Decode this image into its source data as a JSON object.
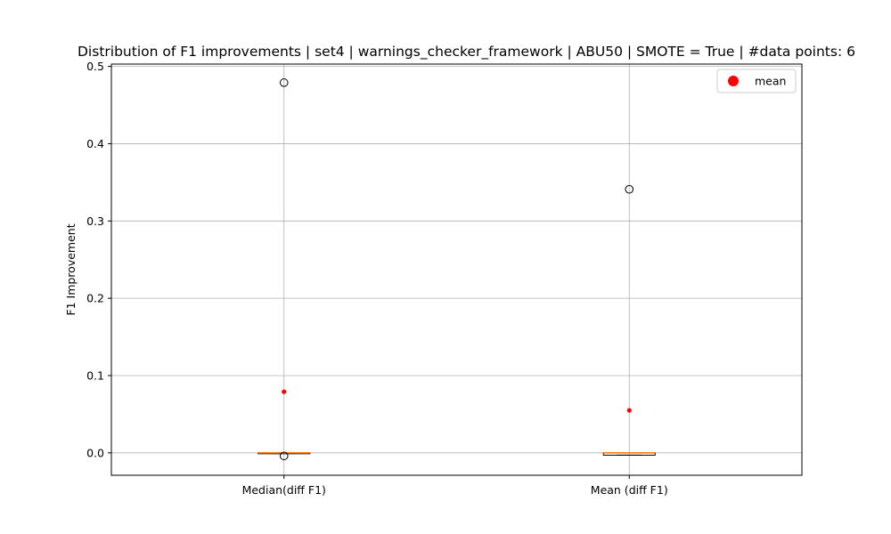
{
  "chart_data": {
    "type": "box",
    "title": "Distribution of F1 improvements | set4 | warnings_checker_framework | ABU50 | SMOTE = True | #data points: 6",
    "xlabel": "",
    "ylabel": "F1 Improvement",
    "ylim": [
      -0.029,
      0.503
    ],
    "yticks": [
      0.0,
      0.1,
      0.2,
      0.3,
      0.4,
      0.5
    ],
    "ytick_labels": [
      "0.0",
      "0.1",
      "0.2",
      "0.3",
      "0.4",
      "0.5"
    ],
    "categories": [
      "Median(diff F1)",
      "Mean (diff F1)"
    ],
    "grid": true,
    "legend": {
      "placement": "top-right",
      "entries": [
        {
          "label": "mean",
          "color": "#ff0000"
        }
      ]
    },
    "colors": {
      "median": "#ff7f0e",
      "mean": "#ff0000",
      "box": "#000000",
      "grid": "#b0b0b0"
    },
    "boxes": [
      {
        "q1": -0.001,
        "median": 0.0,
        "q3": 0.0,
        "whisker_low": -0.001,
        "whisker_high": 0.0,
        "mean": 0.079,
        "outliers": [
          0.479,
          -0.004
        ]
      },
      {
        "q1": -0.003,
        "median": 0.0,
        "q3": 0.0,
        "whisker_low": -0.003,
        "whisker_high": 0.0,
        "mean": 0.055,
        "outliers": [
          0.341
        ]
      }
    ]
  }
}
